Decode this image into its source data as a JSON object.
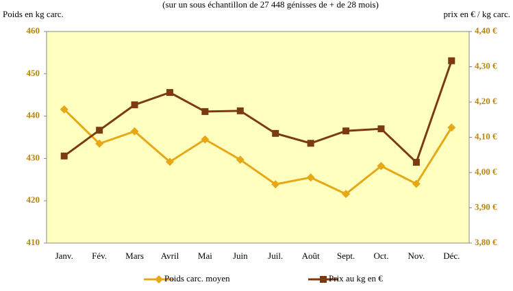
{
  "chart_data": {
    "type": "line",
    "title": "(sur un sous échantillon de 27 448 génisses de + de 28 mois)",
    "y_label": "Poids en kg carc.",
    "y2_label": "prix en € / kg carc.",
    "categories": [
      "Janv.",
      "Fév.",
      "Mars",
      "Avril",
      "Mai",
      "Juin",
      "Juil.",
      "Août",
      "Sept.",
      "Oct.",
      "Nov.",
      "Déc."
    ],
    "series": [
      {
        "name": "Poids carc. moyen",
        "color": "#e6a817",
        "marker": "diamond",
        "values": [
          441.6,
          433.5,
          436.4,
          429.2,
          434.5,
          429.7,
          423.9,
          425.5,
          421.6,
          428.2,
          424.0,
          437.3
        ]
      },
      {
        "name": "Prix au kg en €",
        "color": "#7b3a10",
        "marker": "square",
        "axis": "y2",
        "values": [
          4.047,
          4.12,
          4.192,
          4.227,
          4.173,
          4.175,
          4.111,
          4.083,
          4.118,
          4.124,
          4.029,
          4.317
        ]
      }
    ],
    "ylim": [
      410,
      460
    ],
    "yticks": [
      410,
      420,
      430,
      440,
      450,
      460
    ],
    "y2lim": [
      3.8,
      4.4
    ],
    "y2ticks": [
      {
        "value": 3.8,
        "label": "3,80 €"
      },
      {
        "value": 3.9,
        "label": "3,90 €"
      },
      {
        "value": 4.0,
        "label": "4,00 €"
      },
      {
        "value": 4.1,
        "label": "4,10 €"
      },
      {
        "value": 4.2,
        "label": "4,20 €"
      },
      {
        "value": 4.3,
        "label": "4,30 €"
      },
      {
        "value": 4.4,
        "label": "4,40 €"
      }
    ],
    "background": "#ffffc0",
    "legend": "bottom"
  }
}
